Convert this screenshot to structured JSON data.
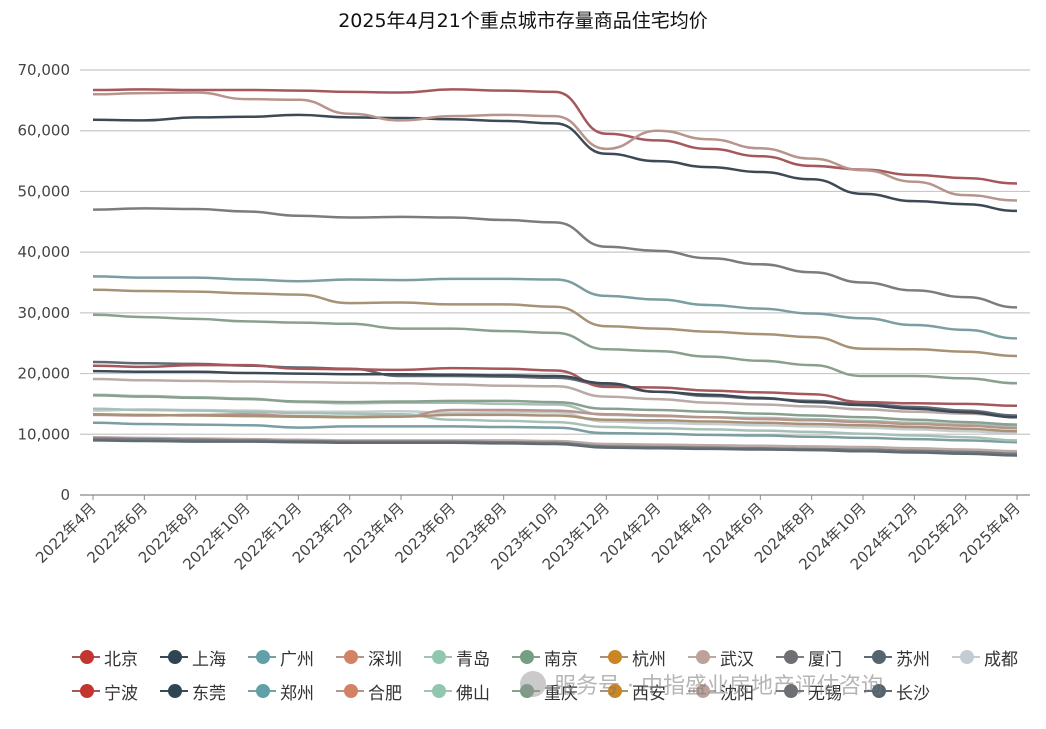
{
  "chart_data": {
    "type": "line",
    "title": "2025年4月21个重点城市存量商品住宅均价",
    "ylim": [
      0,
      70000
    ],
    "y_ticks": [
      "0",
      "10,000",
      "20,000",
      "30,000",
      "40,000",
      "50,000",
      "60,000",
      "70,000"
    ],
    "x_tick_labels": [
      "2022年4月",
      "2022年6月",
      "2022年8月",
      "2022年10月",
      "2022年12月",
      "2023年2月",
      "2023年4月",
      "2023年6月",
      "2023年8月",
      "2023年10月",
      "2023年12月",
      "2024年2月",
      "2024年4月",
      "2024年6月",
      "2024年8月",
      "2024年10月",
      "2024年12月",
      "2025年2月",
      "2025年4月"
    ],
    "grid": "horizontal",
    "legend_position": "bottom",
    "series": [
      {
        "name": "北京",
        "color": "#c23531",
        "line_color": "#a5575b",
        "values": [
          66700,
          66800,
          66700,
          66700,
          66600,
          66400,
          66300,
          66800,
          66600,
          66400,
          59500,
          58400,
          57000,
          55800,
          54200,
          53600,
          52700,
          52200,
          51300
        ]
      },
      {
        "name": "上海",
        "color": "#2f4554",
        "line_color": "#3d4a55",
        "values": [
          61800,
          61700,
          62200,
          62300,
          62600,
          62200,
          62100,
          61900,
          61600,
          61200,
          56200,
          55000,
          54000,
          53200,
          52000,
          49600,
          48400,
          47900,
          46800
        ]
      },
      {
        "name": "广州",
        "color": "#61a0a8",
        "line_color": "#7a9ea1",
        "values": [
          36000,
          35800,
          35800,
          35500,
          35200,
          35500,
          35400,
          35600,
          35600,
          35500,
          32800,
          32200,
          31300,
          30700,
          29900,
          29100,
          28000,
          27200,
          25800
        ]
      },
      {
        "name": "深圳",
        "color": "#d48265",
        "line_color": "#b7948c",
        "values": [
          66000,
          66200,
          66300,
          65200,
          65100,
          62800,
          61700,
          62400,
          62600,
          62400,
          57000,
          60000,
          58600,
          57100,
          55400,
          53500,
          51600,
          49400,
          48500
        ]
      },
      {
        "name": "青岛",
        "color": "#91c7ae",
        "line_color": "#a7c0b5",
        "values": [
          16500,
          16300,
          16100,
          15900,
          15300,
          15100,
          15200,
          15200,
          15000,
          14900,
          13200,
          13000,
          12800,
          12700,
          12500,
          12200,
          11900,
          11600,
          11200
        ]
      },
      {
        "name": "南京",
        "color": "#749f83",
        "line_color": "#8aa08f",
        "values": [
          29700,
          29300,
          29000,
          28600,
          28400,
          28200,
          27400,
          27400,
          27000,
          26700,
          24000,
          23700,
          22800,
          22100,
          21400,
          19600,
          19600,
          19200,
          18400
        ]
      },
      {
        "name": "杭州",
        "color": "#ca8622",
        "line_color": "#a89276",
        "values": [
          33800,
          33600,
          33500,
          33200,
          33000,
          31600,
          31700,
          31400,
          31400,
          31000,
          27800,
          27400,
          26900,
          26500,
          26000,
          24100,
          24000,
          23600,
          22900
        ]
      },
      {
        "name": "武汉",
        "color": "#bda29a",
        "line_color": "#b9aaa6",
        "values": [
          19100,
          18900,
          18800,
          18700,
          18600,
          18500,
          18400,
          18200,
          18000,
          17900,
          16200,
          15800,
          15200,
          14900,
          14600,
          14100,
          13700,
          13400,
          12900
        ]
      },
      {
        "name": "厦门",
        "color": "#6e7074",
        "line_color": "#7c7c7e",
        "values": [
          47000,
          47200,
          47100,
          46700,
          46000,
          45700,
          45800,
          45700,
          45300,
          44900,
          40900,
          40200,
          39000,
          38000,
          36700,
          35000,
          33700,
          32600,
          30900
        ]
      },
      {
        "name": "苏州",
        "color": "#546570",
        "line_color": "#5f6a72",
        "values": [
          21900,
          21700,
          21600,
          21300,
          21000,
          20800,
          19600,
          19600,
          19500,
          19300,
          18200,
          17000,
          16300,
          15900,
          15500,
          15000,
          14500,
          13900,
          13100
        ]
      },
      {
        "name": "成都",
        "color": "#c4ccd3",
        "line_color": "#c6cbcf",
        "values": [
          13900,
          14100,
          14000,
          13900,
          13700,
          13700,
          13800,
          13500,
          13600,
          13600,
          12100,
          11900,
          11700,
          11500,
          11300,
          11100,
          10800,
          10500,
          10100
        ]
      },
      {
        "name": "宁波",
        "color": "#c23531",
        "line_color": "#a5575b",
        "values": [
          21300,
          21100,
          21400,
          21400,
          20800,
          20700,
          20600,
          20900,
          20800,
          20500,
          17800,
          17700,
          17200,
          16900,
          16600,
          15300,
          15100,
          15000,
          14700
        ]
      },
      {
        "name": "东莞",
        "color": "#2f4554",
        "line_color": "#3d4a55",
        "values": [
          20400,
          20300,
          20300,
          20100,
          20000,
          19900,
          19900,
          19800,
          19700,
          19600,
          18400,
          17000,
          16500,
          16000,
          15300,
          14800,
          14200,
          13600,
          12800
        ]
      },
      {
        "name": "郑州",
        "color": "#61a0a8",
        "line_color": "#7a9ea1",
        "values": [
          11900,
          11700,
          11600,
          11500,
          11100,
          11300,
          11300,
          11300,
          11200,
          11100,
          10200,
          10100,
          9900,
          9800,
          9600,
          9400,
          9200,
          9000,
          8700
        ]
      },
      {
        "name": "合肥",
        "color": "#d48265",
        "line_color": "#b7948c",
        "values": [
          13200,
          13100,
          13200,
          13300,
          13000,
          12900,
          13000,
          14000,
          14000,
          13900,
          13300,
          13100,
          12800,
          12500,
          12300,
          12000,
          11700,
          11400,
          11000
        ]
      },
      {
        "name": "佛山",
        "color": "#91c7ae",
        "line_color": "#a7c0b5",
        "values": [
          14200,
          14000,
          13900,
          13700,
          13500,
          13400,
          13300,
          12400,
          12200,
          12000,
          11200,
          11000,
          10800,
          10600,
          10400,
          10100,
          9800,
          9500,
          9000
        ]
      },
      {
        "name": "重庆",
        "color": "#749f83",
        "line_color": "#8aa08f",
        "values": [
          16400,
          16200,
          16000,
          15800,
          15400,
          15300,
          15400,
          15500,
          15500,
          15300,
          14200,
          14000,
          13700,
          13400,
          13100,
          12800,
          12400,
          12000,
          11600
        ]
      },
      {
        "name": "西安",
        "color": "#ca8622",
        "line_color": "#a89276",
        "values": [
          13300,
          13200,
          13100,
          13000,
          12900,
          12800,
          12900,
          13200,
          13200,
          13100,
          12400,
          12300,
          12100,
          11900,
          11700,
          11500,
          11200,
          10900,
          10500
        ]
      },
      {
        "name": "沈阳",
        "color": "#bda29a",
        "line_color": "#b9aaa6",
        "values": [
          9500,
          9400,
          9300,
          9200,
          9100,
          9000,
          9000,
          9000,
          9000,
          8900,
          8400,
          8300,
          8200,
          8100,
          8000,
          7900,
          7700,
          7500,
          7200
        ]
      },
      {
        "name": "无锡",
        "color": "#6e7074",
        "line_color": "#7c7c7e",
        "values": [
          9300,
          9200,
          9100,
          9000,
          8900,
          8800,
          8800,
          8800,
          8700,
          8600,
          8000,
          7900,
          7800,
          7700,
          7600,
          7500,
          7300,
          7100,
          6800
        ]
      },
      {
        "name": "长沙",
        "color": "#546570",
        "line_color": "#5f6a72",
        "values": [
          9000,
          8900,
          8800,
          8800,
          8700,
          8600,
          8600,
          8600,
          8500,
          8400,
          7800,
          7700,
          7600,
          7500,
          7400,
          7200,
          7000,
          6800,
          6500
        ]
      }
    ]
  },
  "watermark": {
    "text": "服务号 · 中指盛业房地产评估咨询",
    "icon": "wechat-icon"
  }
}
